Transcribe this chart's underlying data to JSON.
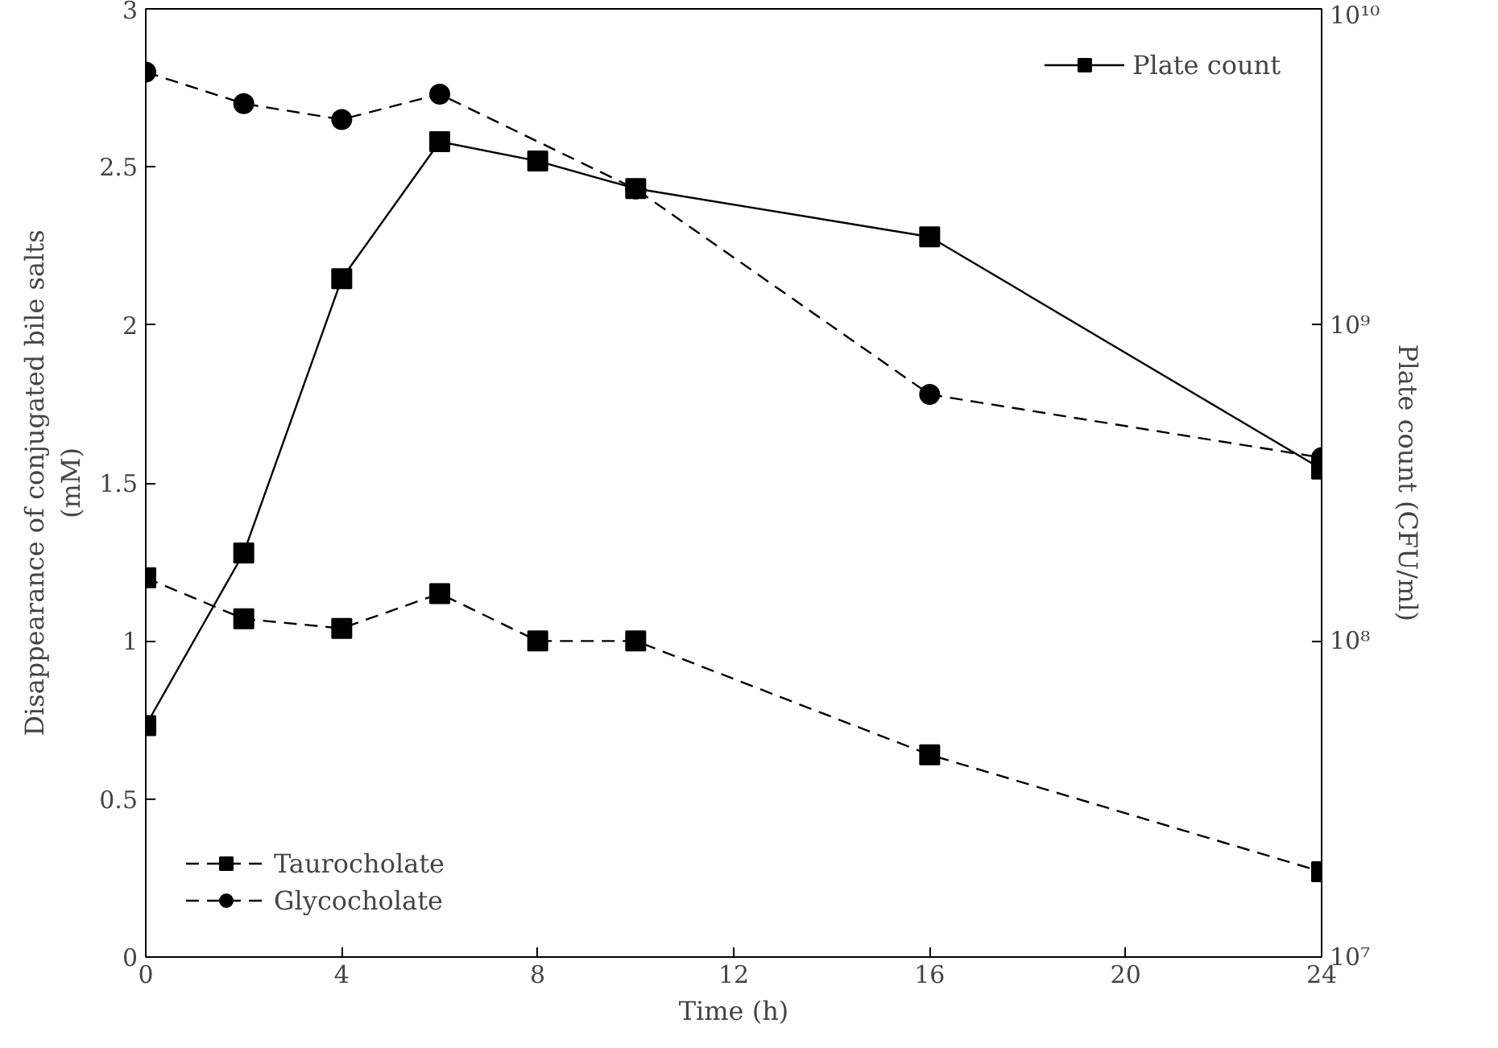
{
  "chart_data": {
    "type": "line",
    "xlabel": "Time (h)",
    "ylabel": "Disappearance of conjugated bile salts\n(mM)",
    "y2label": "Plate count (CFU/ml)",
    "xlim": [
      0,
      24
    ],
    "xticks": [
      0,
      4,
      8,
      12,
      16,
      20,
      24
    ],
    "ylim": [
      0,
      3
    ],
    "yticks": [
      0,
      0.5,
      1,
      1.5,
      2,
      2.5,
      3
    ],
    "y2lim": [
      10000000,
      10000000000
    ],
    "y2ticks": [
      {
        "value": 10000000,
        "label": "10⁷"
      },
      {
        "value": 100000000,
        "label": "10⁸"
      },
      {
        "value": 1000000000,
        "label": "10⁹"
      },
      {
        "value": 10000000000,
        "label": "10¹⁰"
      }
    ],
    "log": "y2",
    "grid": false,
    "legend": "bottom left",
    "series": [
      {
        "name": "Taurocholate",
        "color": "#000000",
        "marker": "square",
        "line_style": "dashed",
        "x": [
          0,
          2,
          4,
          6,
          8,
          10,
          16,
          24
        ],
        "values": [
          1.2,
          1.07,
          1.04,
          1.15,
          1.0,
          1.0,
          0.64,
          0.27
        ]
      },
      {
        "name": "Glycocholate",
        "color": "#000000",
        "marker": "circle",
        "line_style": "dashed",
        "x": [
          0,
          2,
          4,
          6,
          10,
          16,
          24
        ],
        "values": [
          2.8,
          2.7,
          2.65,
          2.73,
          2.43,
          1.78,
          1.58
        ]
      },
      {
        "name": "Plate count",
        "color": "#000000",
        "marker": "square",
        "line_style": "solid",
        "axis": "y2",
        "x": [
          0,
          2,
          4,
          6,
          8,
          10,
          16,
          24
        ],
        "values": [
          54000000,
          190000000,
          1400000000,
          3800000000,
          3300000000,
          2700000000,
          1900000000,
          350000000
        ]
      }
    ]
  }
}
